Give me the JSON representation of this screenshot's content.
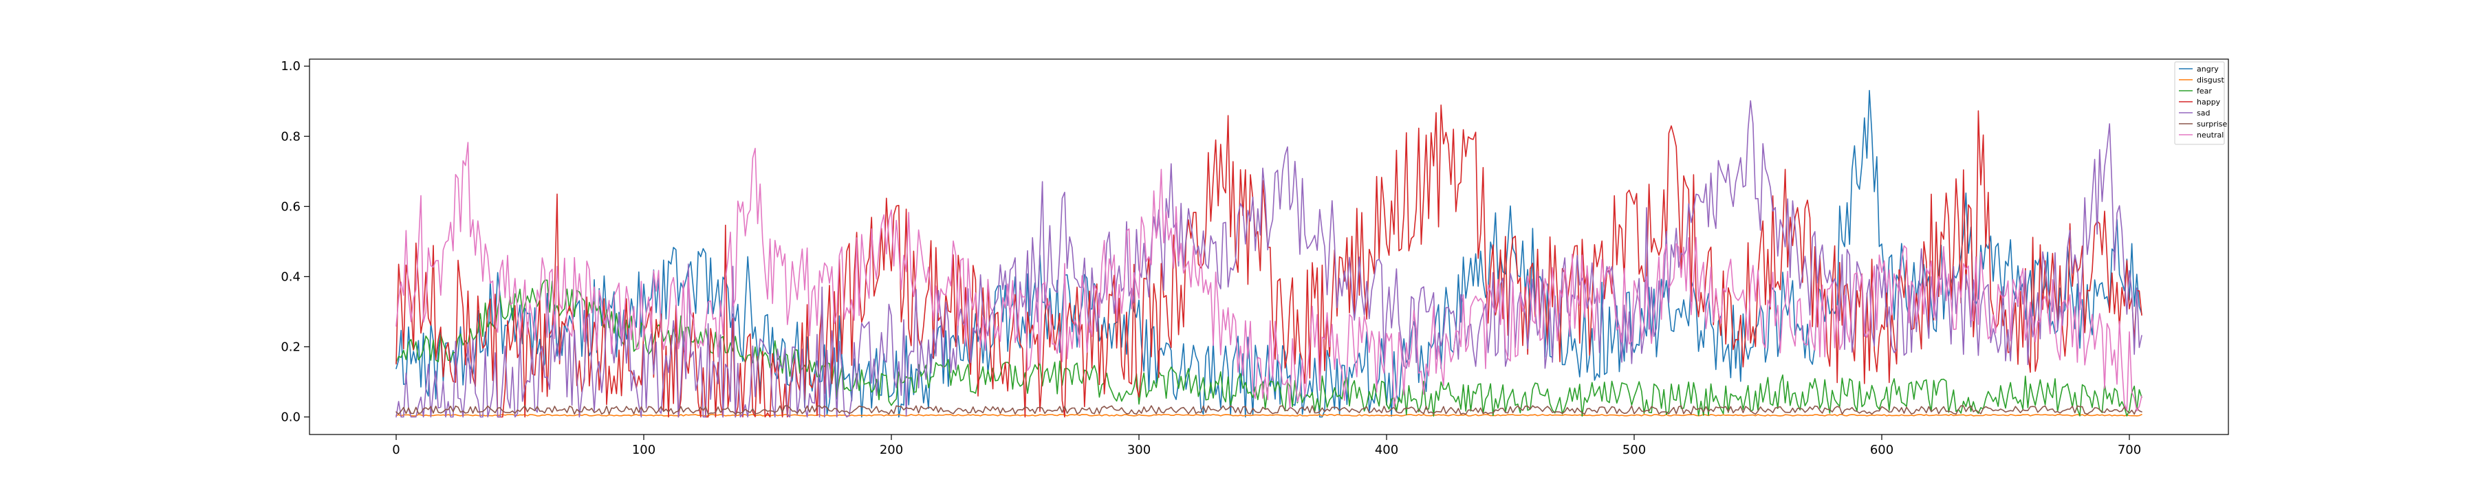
{
  "chart_data": {
    "type": "line",
    "title": "",
    "xlabel": "",
    "ylabel": "",
    "xlim": [
      -35,
      740
    ],
    "ylim": [
      -0.05,
      1.02
    ],
    "x_count": 706,
    "x_ticks": [
      0,
      100,
      200,
      300,
      400,
      500,
      600,
      700
    ],
    "x_tick_labels": [
      "0",
      "100",
      "200",
      "300",
      "400",
      "500",
      "600",
      "700"
    ],
    "y_ticks": [
      0.0,
      0.2,
      0.4,
      0.6,
      0.8,
      1.0
    ],
    "y_tick_labels": [
      "0.0",
      "0.2",
      "0.4",
      "0.6",
      "0.8",
      "1.0"
    ],
    "grid": false,
    "legend_position": "top-right",
    "series": [
      {
        "name": "angry",
        "color": "#1f77b4",
        "anchors": [
          [
            0,
            0.2
          ],
          [
            20,
            0.15
          ],
          [
            40,
            0.3
          ],
          [
            60,
            0.25
          ],
          [
            80,
            0.28
          ],
          [
            100,
            0.3
          ],
          [
            110,
            0.35
          ],
          [
            120,
            0.42
          ],
          [
            130,
            0.3
          ],
          [
            150,
            0.2
          ],
          [
            170,
            0.12
          ],
          [
            190,
            0.08
          ],
          [
            210,
            0.12
          ],
          [
            230,
            0.18
          ],
          [
            250,
            0.3
          ],
          [
            265,
            0.28
          ],
          [
            280,
            0.3
          ],
          [
            295,
            0.25
          ],
          [
            310,
            0.15
          ],
          [
            330,
            0.1
          ],
          [
            350,
            0.12
          ],
          [
            370,
            0.08
          ],
          [
            390,
            0.15
          ],
          [
            400,
            0.1
          ],
          [
            420,
            0.2
          ],
          [
            440,
            0.45
          ],
          [
            450,
            0.5
          ],
          [
            460,
            0.3
          ],
          [
            480,
            0.2
          ],
          [
            500,
            0.25
          ],
          [
            520,
            0.3
          ],
          [
            540,
            0.2
          ],
          [
            560,
            0.3
          ],
          [
            580,
            0.25
          ],
          [
            590,
            0.7
          ],
          [
            596,
            0.85
          ],
          [
            600,
            0.4
          ],
          [
            620,
            0.35
          ],
          [
            640,
            0.45
          ],
          [
            660,
            0.38
          ],
          [
            680,
            0.3
          ],
          [
            695,
            0.45
          ],
          [
            705,
            0.4
          ]
        ],
        "noise": 0.12,
        "seed": 11
      },
      {
        "name": "disgust",
        "color": "#ff7f0e",
        "anchors": [
          [
            0,
            0.005
          ],
          [
            705,
            0.005
          ]
        ],
        "noise": 0.002,
        "seed": 22
      },
      {
        "name": "fear",
        "color": "#2ca02c",
        "anchors": [
          [
            0,
            0.18
          ],
          [
            20,
            0.2
          ],
          [
            40,
            0.3
          ],
          [
            60,
            0.35
          ],
          [
            80,
            0.3
          ],
          [
            100,
            0.22
          ],
          [
            120,
            0.25
          ],
          [
            140,
            0.2
          ],
          [
            160,
            0.15
          ],
          [
            180,
            0.1
          ],
          [
            200,
            0.08
          ],
          [
            220,
            0.12
          ],
          [
            240,
            0.1
          ],
          [
            260,
            0.12
          ],
          [
            280,
            0.1
          ],
          [
            300,
            0.08
          ],
          [
            320,
            0.1
          ],
          [
            340,
            0.08
          ],
          [
            360,
            0.06
          ],
          [
            380,
            0.07
          ],
          [
            400,
            0.06
          ],
          [
            420,
            0.05
          ],
          [
            440,
            0.05
          ],
          [
            460,
            0.06
          ],
          [
            480,
            0.05
          ],
          [
            500,
            0.06
          ],
          [
            520,
            0.05
          ],
          [
            540,
            0.06
          ],
          [
            560,
            0.07
          ],
          [
            580,
            0.06
          ],
          [
            600,
            0.07
          ],
          [
            620,
            0.06
          ],
          [
            640,
            0.06
          ],
          [
            660,
            0.07
          ],
          [
            680,
            0.05
          ],
          [
            705,
            0.05
          ]
        ],
        "noise": 0.05,
        "seed": 33
      },
      {
        "name": "happy",
        "color": "#d62728",
        "anchors": [
          [
            0,
            0.25
          ],
          [
            15,
            0.35
          ],
          [
            30,
            0.2
          ],
          [
            50,
            0.12
          ],
          [
            70,
            0.18
          ],
          [
            90,
            0.2
          ],
          [
            110,
            0.15
          ],
          [
            130,
            0.12
          ],
          [
            150,
            0.1
          ],
          [
            170,
            0.2
          ],
          [
            185,
            0.35
          ],
          [
            200,
            0.45
          ],
          [
            220,
            0.3
          ],
          [
            240,
            0.2
          ],
          [
            260,
            0.15
          ],
          [
            280,
            0.2
          ],
          [
            300,
            0.25
          ],
          [
            320,
            0.4
          ],
          [
            335,
            0.7
          ],
          [
            340,
            0.6
          ],
          [
            350,
            0.5
          ],
          [
            360,
            0.2
          ],
          [
            375,
            0.3
          ],
          [
            390,
            0.45
          ],
          [
            405,
            0.6
          ],
          [
            420,
            0.7
          ],
          [
            430,
            0.8
          ],
          [
            440,
            0.5
          ],
          [
            460,
            0.3
          ],
          [
            480,
            0.35
          ],
          [
            500,
            0.5
          ],
          [
            515,
            0.65
          ],
          [
            530,
            0.4
          ],
          [
            545,
            0.35
          ],
          [
            565,
            0.55
          ],
          [
            580,
            0.3
          ],
          [
            600,
            0.25
          ],
          [
            620,
            0.4
          ],
          [
            635,
            0.55
          ],
          [
            650,
            0.35
          ],
          [
            670,
            0.3
          ],
          [
            690,
            0.5
          ],
          [
            705,
            0.3
          ]
        ],
        "noise": 0.2,
        "seed": 44
      },
      {
        "name": "sad",
        "color": "#9467bd",
        "anchors": [
          [
            0,
            0.05
          ],
          [
            40,
            0.08
          ],
          [
            80,
            0.15
          ],
          [
            120,
            0.12
          ],
          [
            150,
            0.1
          ],
          [
            180,
            0.12
          ],
          [
            200,
            0.2
          ],
          [
            220,
            0.25
          ],
          [
            240,
            0.3
          ],
          [
            260,
            0.4
          ],
          [
            270,
            0.5
          ],
          [
            280,
            0.35
          ],
          [
            300,
            0.45
          ],
          [
            320,
            0.5
          ],
          [
            330,
            0.45
          ],
          [
            340,
            0.55
          ],
          [
            350,
            0.6
          ],
          [
            360,
            0.62
          ],
          [
            370,
            0.55
          ],
          [
            380,
            0.45
          ],
          [
            400,
            0.3
          ],
          [
            420,
            0.25
          ],
          [
            440,
            0.3
          ],
          [
            460,
            0.28
          ],
          [
            480,
            0.32
          ],
          [
            500,
            0.3
          ],
          [
            520,
            0.45
          ],
          [
            540,
            0.65
          ],
          [
            545,
            0.8
          ],
          [
            560,
            0.5
          ],
          [
            580,
            0.35
          ],
          [
            600,
            0.3
          ],
          [
            620,
            0.35
          ],
          [
            640,
            0.3
          ],
          [
            660,
            0.28
          ],
          [
            680,
            0.45
          ],
          [
            690,
            0.7
          ],
          [
            700,
            0.3
          ],
          [
            705,
            0.2
          ]
        ],
        "noise": 0.15,
        "seed": 55
      },
      {
        "name": "surprise",
        "color": "#8c564b",
        "anchors": [
          [
            0,
            0.02
          ],
          [
            705,
            0.02
          ]
        ],
        "noise": 0.012,
        "seed": 66
      },
      {
        "name": "neutral",
        "color": "#e377c2",
        "anchors": [
          [
            0,
            0.32
          ],
          [
            10,
            0.38
          ],
          [
            20,
            0.45
          ],
          [
            28,
            0.7
          ],
          [
            35,
            0.4
          ],
          [
            50,
            0.3
          ],
          [
            70,
            0.35
          ],
          [
            90,
            0.28
          ],
          [
            110,
            0.3
          ],
          [
            130,
            0.25
          ],
          [
            140,
            0.55
          ],
          [
            145,
            0.75
          ],
          [
            150,
            0.4
          ],
          [
            170,
            0.35
          ],
          [
            190,
            0.4
          ],
          [
            205,
            0.5
          ],
          [
            220,
            0.35
          ],
          [
            240,
            0.3
          ],
          [
            260,
            0.25
          ],
          [
            280,
            0.3
          ],
          [
            300,
            0.45
          ],
          [
            310,
            0.6
          ],
          [
            320,
            0.4
          ],
          [
            340,
            0.2
          ],
          [
            360,
            0.15
          ],
          [
            380,
            0.18
          ],
          [
            400,
            0.15
          ],
          [
            420,
            0.2
          ],
          [
            440,
            0.25
          ],
          [
            460,
            0.3
          ],
          [
            480,
            0.35
          ],
          [
            500,
            0.3
          ],
          [
            520,
            0.4
          ],
          [
            540,
            0.35
          ],
          [
            560,
            0.3
          ],
          [
            580,
            0.3
          ],
          [
            600,
            0.35
          ],
          [
            620,
            0.4
          ],
          [
            640,
            0.35
          ],
          [
            660,
            0.3
          ],
          [
            680,
            0.25
          ],
          [
            695,
            0.15
          ],
          [
            705,
            0.08
          ]
        ],
        "noise": 0.13,
        "seed": 77
      }
    ]
  }
}
